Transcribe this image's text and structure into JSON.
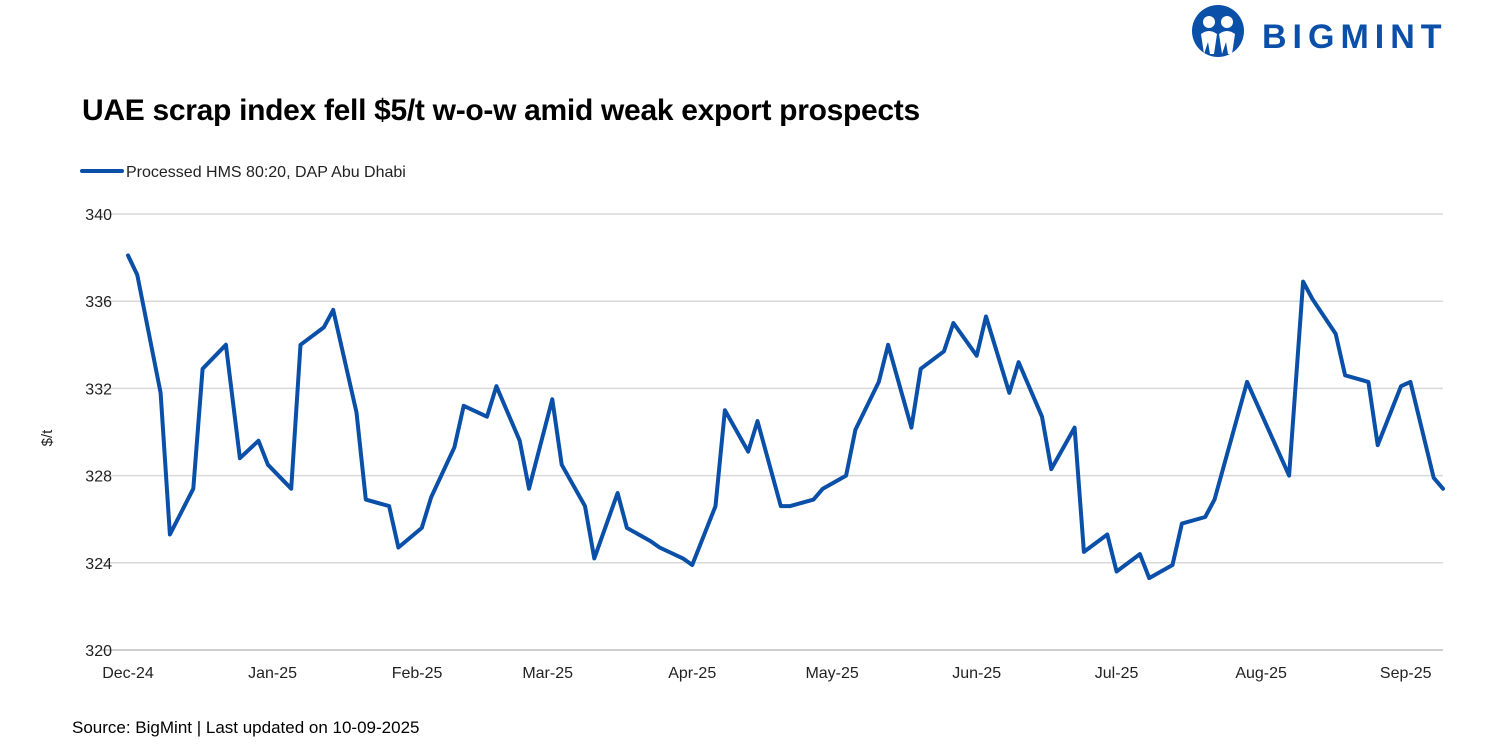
{
  "header": {
    "brand": "BIGMINT",
    "brand_color": "#0a4fa8"
  },
  "chart_data": {
    "type": "line",
    "title": "UAE scrap index fell $5/t w-o-w amid weak export prospects",
    "xlabel": "",
    "ylabel": "$/t",
    "ylim": [
      320,
      340
    ],
    "yticks": [
      320,
      324,
      328,
      332,
      336,
      340
    ],
    "xlim": [
      "2024-11-25",
      "2025-09-09"
    ],
    "xticks": [
      {
        "date": "2024-12-01",
        "label": "Dec-24"
      },
      {
        "date": "2025-01-01",
        "label": "Jan-25"
      },
      {
        "date": "2025-02-01",
        "label": "Feb-25"
      },
      {
        "date": "2025-03-01",
        "label": "Mar-25"
      },
      {
        "date": "2025-04-01",
        "label": "Apr-25"
      },
      {
        "date": "2025-05-01",
        "label": "May-25"
      },
      {
        "date": "2025-06-01",
        "label": "Jun-25"
      },
      {
        "date": "2025-07-01",
        "label": "Jul-25"
      },
      {
        "date": "2025-08-01",
        "label": "Aug-25"
      },
      {
        "date": "2025-09-01",
        "label": "Sep-25"
      }
    ],
    "grid": "horizontal",
    "legend_position": "top-left",
    "series": [
      {
        "name": "Processed HMS 80:20, DAP Abu Dhabi",
        "color": "#0a4fa8",
        "points": [
          [
            "2024-12-01",
            338.1
          ],
          [
            "2024-12-03",
            337.2
          ],
          [
            "2024-12-08",
            331.8
          ],
          [
            "2024-12-10",
            325.3
          ],
          [
            "2024-12-15",
            327.4
          ],
          [
            "2024-12-17",
            332.9
          ],
          [
            "2024-12-22",
            334.0
          ],
          [
            "2024-12-25",
            328.8
          ],
          [
            "2024-12-29",
            329.6
          ],
          [
            "2024-12-31",
            328.5
          ],
          [
            "2025-01-05",
            327.4
          ],
          [
            "2025-01-07",
            334.0
          ],
          [
            "2025-01-12",
            334.8
          ],
          [
            "2025-01-14",
            335.6
          ],
          [
            "2025-01-19",
            330.9
          ],
          [
            "2025-01-21",
            326.9
          ],
          [
            "2025-01-26",
            326.6
          ],
          [
            "2025-01-28",
            324.7
          ],
          [
            "2025-02-02",
            325.6
          ],
          [
            "2025-02-04",
            327.0
          ],
          [
            "2025-02-09",
            329.3
          ],
          [
            "2025-02-11",
            331.2
          ],
          [
            "2025-02-16",
            330.7
          ],
          [
            "2025-02-18",
            332.1
          ],
          [
            "2025-02-23",
            329.6
          ],
          [
            "2025-02-25",
            327.4
          ],
          [
            "2025-03-02",
            331.5
          ],
          [
            "2025-03-04",
            328.5
          ],
          [
            "2025-03-09",
            326.6
          ],
          [
            "2025-03-11",
            324.2
          ],
          [
            "2025-03-16",
            327.2
          ],
          [
            "2025-03-18",
            325.6
          ],
          [
            "2025-03-23",
            325.0
          ],
          [
            "2025-03-25",
            324.7
          ],
          [
            "2025-03-30",
            324.2
          ],
          [
            "2025-04-01",
            323.9
          ],
          [
            "2025-04-06",
            326.6
          ],
          [
            "2025-04-08",
            331.0
          ],
          [
            "2025-04-13",
            329.1
          ],
          [
            "2025-04-15",
            330.5
          ],
          [
            "2025-04-20",
            326.6
          ],
          [
            "2025-04-22",
            326.6
          ],
          [
            "2025-04-27",
            326.9
          ],
          [
            "2025-04-29",
            327.4
          ],
          [
            "2025-05-04",
            328.0
          ],
          [
            "2025-05-06",
            330.1
          ],
          [
            "2025-05-11",
            332.3
          ],
          [
            "2025-05-13",
            334.0
          ],
          [
            "2025-05-18",
            330.2
          ],
          [
            "2025-05-20",
            332.9
          ],
          [
            "2025-05-25",
            333.7
          ],
          [
            "2025-05-27",
            335.0
          ],
          [
            "2025-06-01",
            333.5
          ],
          [
            "2025-06-03",
            335.3
          ],
          [
            "2025-06-08",
            331.8
          ],
          [
            "2025-06-10",
            333.2
          ],
          [
            "2025-06-15",
            330.7
          ],
          [
            "2025-06-17",
            328.3
          ],
          [
            "2025-06-22",
            330.2
          ],
          [
            "2025-06-24",
            324.5
          ],
          [
            "2025-06-29",
            325.3
          ],
          [
            "2025-07-01",
            323.6
          ],
          [
            "2025-07-06",
            324.4
          ],
          [
            "2025-07-08",
            323.3
          ],
          [
            "2025-07-13",
            323.9
          ],
          [
            "2025-07-15",
            325.8
          ],
          [
            "2025-07-20",
            326.1
          ],
          [
            "2025-07-22",
            326.9
          ],
          [
            "2025-07-29",
            332.3
          ],
          [
            "2025-08-07",
            328.0
          ],
          [
            "2025-08-10",
            336.9
          ],
          [
            "2025-08-12",
            336.1
          ],
          [
            "2025-08-17",
            334.5
          ],
          [
            "2025-08-19",
            332.6
          ],
          [
            "2025-08-24",
            332.3
          ],
          [
            "2025-08-26",
            329.4
          ],
          [
            "2025-08-31",
            332.1
          ],
          [
            "2025-09-02",
            332.3
          ],
          [
            "2025-09-07",
            327.9
          ],
          [
            "2025-09-09",
            327.4
          ]
        ]
      }
    ]
  },
  "footer": {
    "source": "Source: BigMint  |  Last updated on 10-09-2025"
  }
}
